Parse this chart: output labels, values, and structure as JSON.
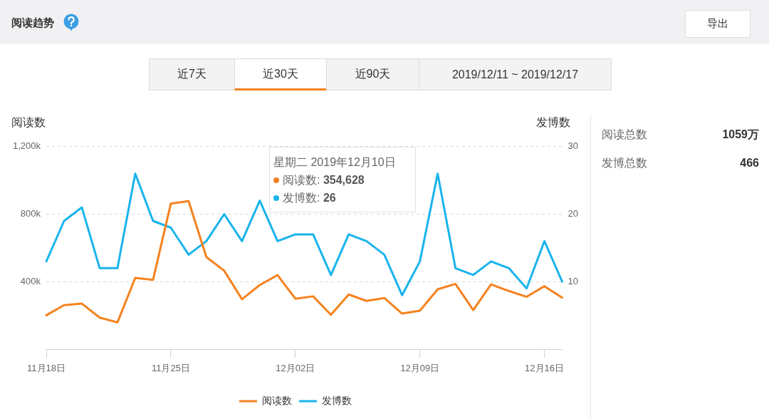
{
  "chart_data": {
    "type": "line",
    "title": "阅读趋势",
    "ylabel": "阅读数",
    "y2label": "发博数",
    "categories": [
      "11月18日",
      null,
      null,
      null,
      null,
      null,
      null,
      "11月25日",
      null,
      null,
      null,
      null,
      null,
      null,
      "12月02日",
      null,
      null,
      null,
      null,
      null,
      null,
      "12月09日",
      null,
      null,
      null,
      null,
      null,
      null,
      "12月16日",
      null
    ],
    "series": [
      {
        "name": "阅读数",
        "color": "#f5821f",
        "values": [
          201000,
          261000,
          270000,
          187000,
          159000,
          422000,
          411000,
          862000,
          877000,
          546000,
          465000,
          296000,
          380000,
          439000,
          299000,
          313000,
          204000,
          324000,
          286000,
          303000,
          211000,
          228000,
          354628,
          387000,
          232000,
          384000,
          345000,
          310000,
          373000,
          305000
        ]
      },
      {
        "name": "发博数",
        "color": "#19b4ec",
        "axis": "y2",
        "values": [
          13,
          19,
          21,
          12,
          12,
          26,
          19,
          18,
          14,
          16,
          20,
          16,
          22,
          16,
          17,
          17,
          11,
          17,
          16,
          14,
          8,
          13,
          26,
          12,
          11,
          13,
          12,
          9,
          16,
          10
        ]
      }
    ],
    "ylim": [
      0,
      1200000
    ],
    "yticks": [
      {
        "value": 400000,
        "label": "400k"
      },
      {
        "value": 800000,
        "label": "800k"
      },
      {
        "value": 1200000,
        "label": "1,200k"
      }
    ],
    "y2lim": [
      0,
      30
    ],
    "y2ticks": [
      10,
      20,
      30
    ],
    "grid": "y",
    "legend": "bottom",
    "marker": "none",
    "line_style": "solid",
    "annotations": [
      "导出",
      "近7天",
      "近30天",
      "近90天",
      "2019/12/11 ~ 2019/12/17",
      "星期二 2019年12月10日",
      "阅读数: 354,628",
      "发博数: 26",
      "阅读总数",
      "1059万",
      "发博总数",
      "466"
    ]
  }
}
